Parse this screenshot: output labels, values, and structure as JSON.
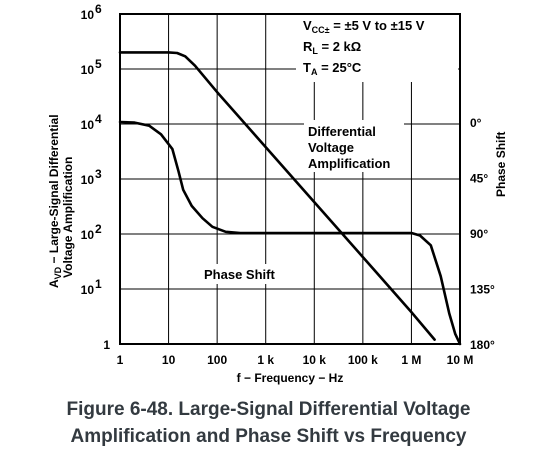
{
  "chart_data": {
    "type": "line",
    "caption_line1": "Figure 6-48. Large-Signal Differential Voltage",
    "caption_line2": "Amplification and Phase Shift vs Frequency",
    "xlabel": "f − Frequency − Hz",
    "ylabel_pre": "A",
    "ylabel_sub": "VD",
    "ylabel_line1_rest": " − Large-Signal Differential",
    "ylabel_line2": "Voltage Amplification",
    "y2label": "Phase Shift",
    "x_scale": "log",
    "y_scale": "log",
    "xlim": [
      1,
      10000000
    ],
    "ylim": [
      1,
      1000000
    ],
    "y2lim": [
      0,
      180
    ],
    "grid": true,
    "x_ticks": [
      {
        "value": 1,
        "label": "1"
      },
      {
        "value": 10,
        "label": "10"
      },
      {
        "value": 100,
        "label": "100"
      },
      {
        "value": 1000,
        "label": "1 k"
      },
      {
        "value": 10000,
        "label": "10 k"
      },
      {
        "value": 100000,
        "label": "100 k"
      },
      {
        "value": 1000000,
        "label": "1 M"
      },
      {
        "value": 10000000,
        "label": "10 M"
      }
    ],
    "y_ticks": [
      {
        "value": 1,
        "label": "1",
        "exp": ""
      },
      {
        "value": 10,
        "label": "10",
        "exp": "1"
      },
      {
        "value": 100,
        "label": "10",
        "exp": "2"
      },
      {
        "value": 1000,
        "label": "10",
        "exp": "3"
      },
      {
        "value": 10000,
        "label": "10",
        "exp": "4"
      },
      {
        "value": 100000,
        "label": "10",
        "exp": "5"
      },
      {
        "value": 1000000,
        "label": "10",
        "exp": "6"
      }
    ],
    "y2_ticks": [
      {
        "value": 0,
        "label": "0°"
      },
      {
        "value": 45,
        "label": "45°"
      },
      {
        "value": 90,
        "label": "90°"
      },
      {
        "value": 135,
        "label": "135°"
      },
      {
        "value": 180,
        "label": "180°"
      }
    ],
    "conditions": {
      "vcc_pre": "V",
      "vcc_sub": "CC±",
      "vcc_rest": " = ±5 V to ±15 V",
      "rl_pre": "R",
      "rl_sub": "L",
      "rl_rest": " = 2 kΩ",
      "ta_pre": "T",
      "ta_sub": "A",
      "ta_rest": " = 25°C"
    },
    "series": [
      {
        "name": "Differential Voltage Amplification",
        "label_lines": [
          "Differential",
          "Voltage",
          "Amplification"
        ],
        "axis": "left",
        "points": [
          [
            1,
            200000
          ],
          [
            10,
            200000
          ],
          [
            15,
            195000
          ],
          [
            22,
            170000
          ],
          [
            35,
            115000
          ],
          [
            100,
            38000
          ],
          [
            1000,
            3800
          ],
          [
            10000,
            380
          ],
          [
            100000,
            38
          ],
          [
            1000000,
            3.8
          ],
          [
            3000000,
            1.2
          ]
        ]
      },
      {
        "name": "Phase Shift",
        "label_lines": [
          "Phase Shift"
        ],
        "axis": "right",
        "points": [
          [
            1,
            0
          ],
          [
            2,
            0.5
          ],
          [
            4,
            3
          ],
          [
            7,
            10
          ],
          [
            12,
            22
          ],
          [
            16,
            40
          ],
          [
            20,
            55
          ],
          [
            30,
            68
          ],
          [
            50,
            78
          ],
          [
            80,
            85
          ],
          [
            150,
            89
          ],
          [
            300,
            90
          ],
          [
            1000,
            90
          ],
          [
            10000,
            90
          ],
          [
            100000,
            90
          ],
          [
            1000000,
            90
          ],
          [
            1500000,
            92
          ],
          [
            2500000,
            100
          ],
          [
            4000000,
            125
          ],
          [
            6000000,
            155
          ],
          [
            8000000,
            172
          ],
          [
            10000000,
            180
          ]
        ]
      }
    ]
  }
}
